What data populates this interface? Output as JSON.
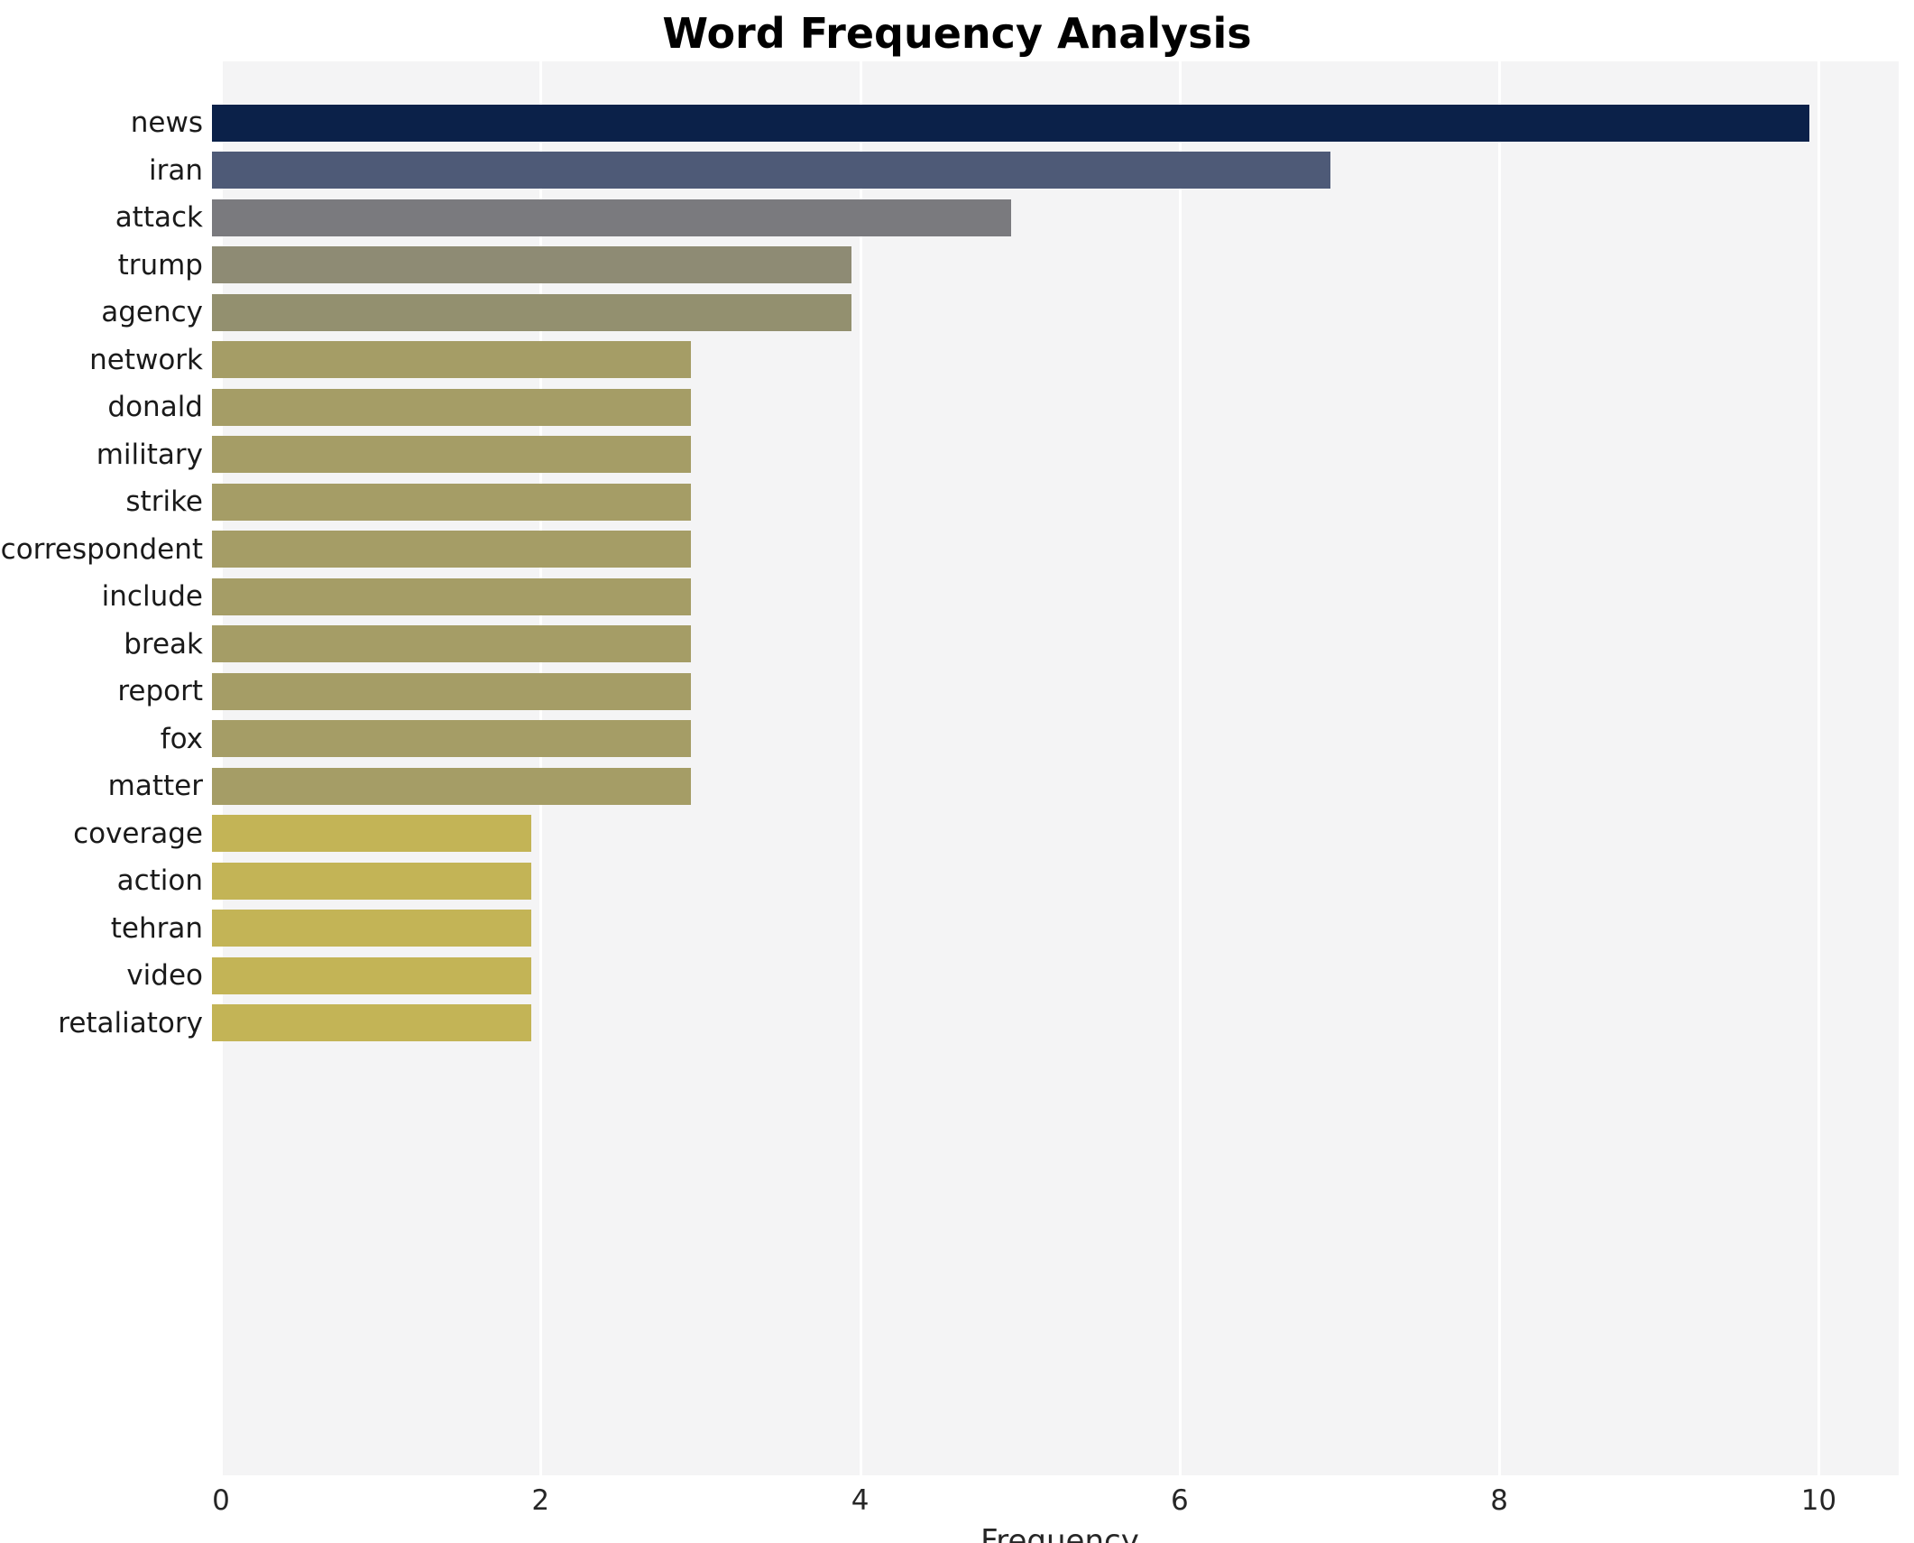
{
  "chart_data": {
    "type": "bar",
    "orientation": "horizontal",
    "title": "Word Frequency Analysis",
    "xlabel": "Frequency",
    "ylabel": "",
    "xlim": [
      0,
      10.5
    ],
    "xticks": [
      0,
      2,
      4,
      6,
      8,
      10
    ],
    "grid": true,
    "plot_background": "#f4f4f5",
    "categories": [
      "news",
      "iran",
      "attack",
      "trump",
      "agency",
      "network",
      "donald",
      "military",
      "strike",
      "correspondent",
      "include",
      "break",
      "report",
      "fox",
      "matter",
      "coverage",
      "action",
      "tehran",
      "video",
      "retaliatory"
    ],
    "values": [
      10,
      7,
      5,
      4,
      4,
      3,
      3,
      3,
      3,
      3,
      3,
      3,
      3,
      3,
      3,
      2,
      2,
      2,
      2,
      2
    ],
    "bar_colors": [
      "#0b2149",
      "#4e5a77",
      "#7a7a7e",
      "#8e8b74",
      "#93906f",
      "#a59d66",
      "#a59d66",
      "#a59d66",
      "#a59d66",
      "#a59d66",
      "#a59d66",
      "#a59d66",
      "#a59d66",
      "#a59d66",
      "#a59d66",
      "#c3b456",
      "#c3b456",
      "#c3b456",
      "#c3b456",
      "#c3b456"
    ]
  }
}
